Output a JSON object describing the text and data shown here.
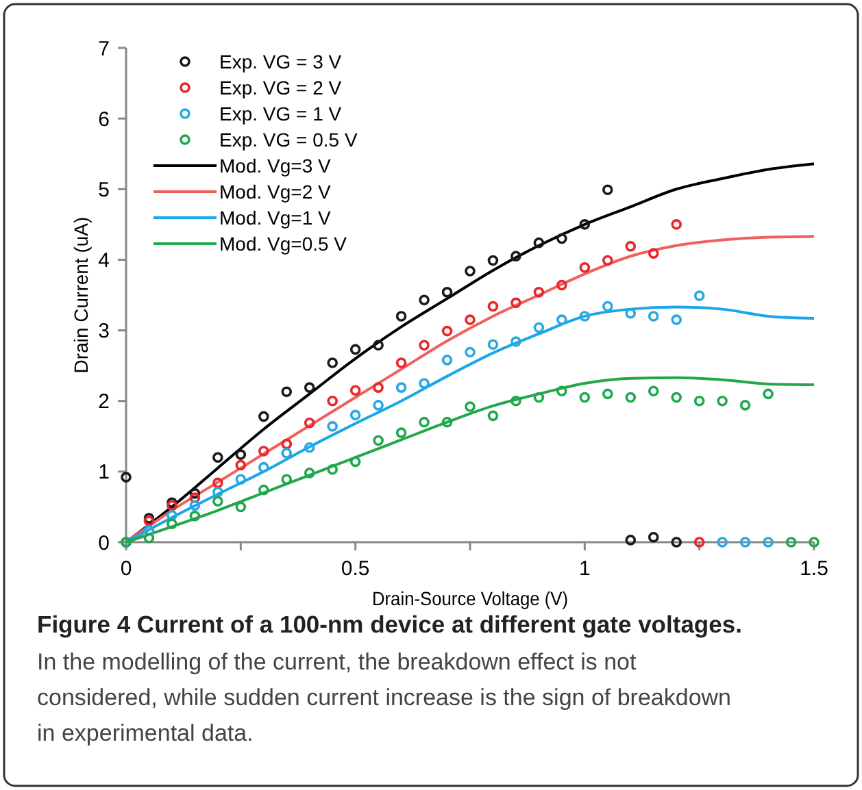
{
  "chart_data": {
    "type": "scatter",
    "title": "Figure 4 Current of a 100-nm device at different gate voltages.",
    "subtitle": "In the modelling of the current, the breakdown effect is not considered, while sudden current increase is the sign of breakdown in experimental data.",
    "xlabel": "Drain-Source Voltage (V)",
    "ylabel": "Drain Current (uA)",
    "xlim": [
      0,
      1.5
    ],
    "ylim": [
      0,
      7
    ],
    "xticks": [
      0,
      {
        "value": 0.25,
        "label": null
      },
      0.5,
      {
        "value": 0.75,
        "label": null
      },
      1,
      {
        "value": 1.25,
        "label": null
      },
      1.5
    ],
    "yticks": [
      0,
      1,
      2,
      3,
      4,
      5,
      6,
      7
    ],
    "grid": false,
    "legend": "top left",
    "series": [
      {
        "name": "Exp. VG = 3 V",
        "marker": "circle",
        "color": "#1a1a1a",
        "x": [
          0,
          0.05,
          0.1,
          0.15,
          0.2,
          0.25,
          0.3,
          0.35,
          0.4,
          0.45,
          0.5,
          0.55,
          0.6,
          0.65,
          0.7,
          0.75,
          0.8,
          0.85,
          0.9,
          0.95,
          1.0,
          1.05,
          1.1,
          1.15,
          1.2
        ],
        "values": [
          0.92,
          0.34,
          0.56,
          0.69,
          1.2,
          1.24,
          1.78,
          2.13,
          2.19,
          2.54,
          2.73,
          2.79,
          3.2,
          3.43,
          3.54,
          3.84,
          3.99,
          4.05,
          4.24,
          4.3,
          4.5,
          4.99,
          0.03,
          0.07,
          0.0
        ]
      },
      {
        "name": "Exp. VG = 2 V",
        "marker": "circle",
        "color": "#e8262b",
        "x": [
          0,
          0.05,
          0.1,
          0.15,
          0.2,
          0.25,
          0.3,
          0.35,
          0.4,
          0.45,
          0.5,
          0.55,
          0.6,
          0.65,
          0.7,
          0.75,
          0.8,
          0.85,
          0.9,
          0.95,
          1.0,
          1.05,
          1.1,
          1.15,
          1.2,
          1.25
        ],
        "values": [
          0,
          0.3,
          0.52,
          0.63,
          0.84,
          1.09,
          1.29,
          1.39,
          1.69,
          2.0,
          2.15,
          2.19,
          2.54,
          2.79,
          2.99,
          3.15,
          3.34,
          3.39,
          3.54,
          3.64,
          3.89,
          3.99,
          4.19,
          4.09,
          4.5,
          0
        ]
      },
      {
        "name": "Exp. VG = 1 V",
        "marker": "circle",
        "color": "#29a9e1",
        "x": [
          0,
          0.05,
          0.1,
          0.15,
          0.2,
          0.25,
          0.3,
          0.35,
          0.4,
          0.45,
          0.5,
          0.55,
          0.6,
          0.65,
          0.7,
          0.75,
          0.8,
          0.85,
          0.9,
          0.95,
          1.0,
          1.05,
          1.1,
          1.15,
          1.2,
          1.25,
          1.3,
          1.35,
          1.4
        ],
        "values": [
          0,
          0.17,
          0.38,
          0.52,
          0.71,
          0.89,
          1.06,
          1.26,
          1.34,
          1.64,
          1.8,
          1.94,
          2.19,
          2.25,
          2.58,
          2.69,
          2.8,
          2.84,
          3.04,
          3.15,
          3.2,
          3.34,
          3.24,
          3.2,
          3.15,
          3.49,
          0,
          0,
          0
        ]
      },
      {
        "name": "Exp. VG = 0.5 V",
        "marker": "circle",
        "color": "#1fa84f",
        "x": [
          0,
          0.05,
          0.1,
          0.15,
          0.2,
          0.25,
          0.3,
          0.35,
          0.4,
          0.45,
          0.5,
          0.55,
          0.6,
          0.65,
          0.7,
          0.75,
          0.8,
          0.85,
          0.9,
          0.95,
          1.0,
          1.05,
          1.1,
          1.15,
          1.2,
          1.25,
          1.3,
          1.35,
          1.4,
          1.45,
          1.5
        ],
        "values": [
          0,
          0.06,
          0.26,
          0.37,
          0.58,
          0.5,
          0.74,
          0.89,
          0.98,
          1.03,
          1.14,
          1.44,
          1.55,
          1.7,
          1.7,
          1.92,
          1.79,
          2.0,
          2.05,
          2.14,
          2.05,
          2.1,
          2.05,
          2.14,
          2.05,
          2.0,
          2.0,
          1.94,
          2.1,
          0,
          0
        ]
      },
      {
        "name": "Mod. Vg=3 V",
        "type": "line",
        "marker": "none",
        "color": "#000000",
        "x": [
          0,
          0.1,
          0.2,
          0.3,
          0.4,
          0.5,
          0.6,
          0.7,
          0.8,
          0.9,
          1.0,
          1.1,
          1.2,
          1.3,
          1.4,
          1.5
        ],
        "values": [
          0,
          0.5,
          1.05,
          1.6,
          2.1,
          2.6,
          3.05,
          3.45,
          3.85,
          4.2,
          4.5,
          4.75,
          5.0,
          5.15,
          5.28,
          5.36
        ]
      },
      {
        "name": "Mod. Vg=2 V",
        "type": "line",
        "marker": "none",
        "color": "#f0605a",
        "x": [
          0,
          0.1,
          0.2,
          0.3,
          0.4,
          0.5,
          0.6,
          0.7,
          0.8,
          0.9,
          1.0,
          1.1,
          1.2,
          1.3,
          1.4,
          1.5
        ],
        "values": [
          0,
          0.45,
          0.85,
          1.25,
          1.65,
          2.05,
          2.45,
          2.85,
          3.2,
          3.5,
          3.8,
          4.05,
          4.2,
          4.28,
          4.32,
          4.33
        ]
      },
      {
        "name": "Mod. Vg=1 V",
        "type": "line",
        "marker": "none",
        "color": "#1ba6e8",
        "x": [
          0,
          0.1,
          0.2,
          0.3,
          0.4,
          0.5,
          0.6,
          0.7,
          0.8,
          0.9,
          1.0,
          1.1,
          1.2,
          1.3,
          1.4,
          1.5
        ],
        "values": [
          0,
          0.35,
          0.68,
          1.0,
          1.35,
          1.68,
          2.0,
          2.35,
          2.68,
          2.95,
          3.2,
          3.3,
          3.33,
          3.3,
          3.2,
          3.17
        ]
      },
      {
        "name": "Mod. Vg=0.5 V",
        "type": "line",
        "marker": "none",
        "color": "#22a74a",
        "x": [
          0,
          0.1,
          0.2,
          0.3,
          0.4,
          0.5,
          0.6,
          0.7,
          0.8,
          0.9,
          1.0,
          1.1,
          1.2,
          1.3,
          1.4,
          1.5
        ],
        "values": [
          0,
          0.22,
          0.45,
          0.7,
          0.95,
          1.2,
          1.45,
          1.7,
          1.93,
          2.1,
          2.25,
          2.32,
          2.33,
          2.3,
          2.24,
          2.23
        ]
      }
    ]
  }
}
